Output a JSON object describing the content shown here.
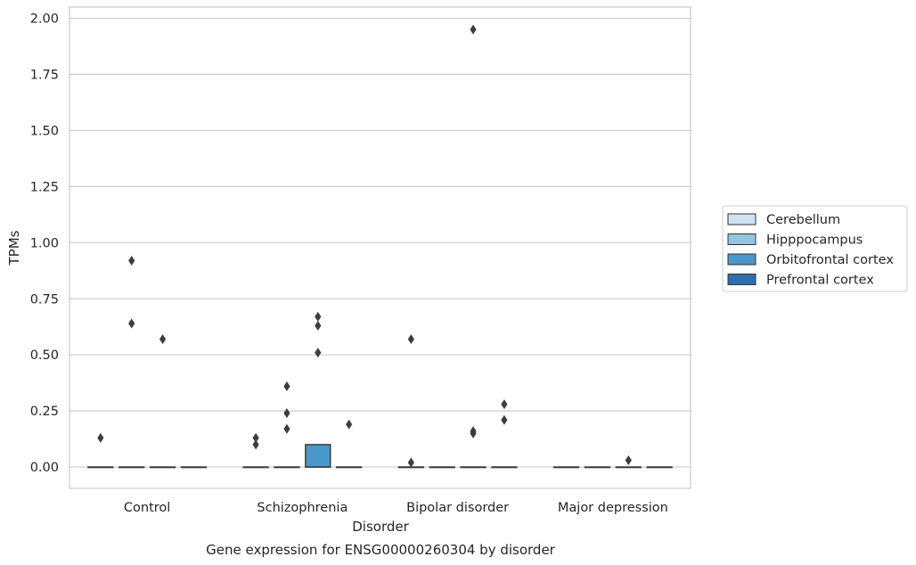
{
  "chart_data": {
    "type": "box",
    "title": "",
    "caption": "Gene expression for ENSG00000260304 by disorder",
    "xlabel": "Disorder",
    "ylabel": "TPMs",
    "ylim": [
      -0.095,
      2.05
    ],
    "yticks": [
      0.0,
      0.25,
      0.5,
      0.75,
      1.0,
      1.25,
      1.5,
      1.75,
      2.0
    ],
    "ytick_labels": [
      "0.00",
      "0.25",
      "0.50",
      "0.75",
      "1.00",
      "1.25",
      "1.50",
      "1.75",
      "2.00"
    ],
    "grid": true,
    "legend_position": "center-right",
    "categories": [
      "Control",
      "Schizophrenia",
      "Bipolar disorder",
      "Major depression"
    ],
    "series": [
      {
        "name": "Cerebellum",
        "color": "#d0e1f2",
        "boxes": [
          {
            "q1": 0,
            "median": 0,
            "q3": 0,
            "whislo": 0,
            "whishi": 0,
            "fliers": [
              0.13
            ]
          },
          {
            "q1": 0,
            "median": 0,
            "q3": 0,
            "whislo": 0,
            "whishi": 0,
            "fliers": [
              0.13,
              0.1
            ]
          },
          {
            "q1": 0,
            "median": 0,
            "q3": 0,
            "whislo": 0,
            "whishi": 0,
            "fliers": [
              0.57,
              0.02
            ]
          },
          {
            "q1": 0,
            "median": 0,
            "q3": 0,
            "whislo": 0,
            "whishi": 0,
            "fliers": []
          }
        ]
      },
      {
        "name": "Hipppocampus",
        "color": "#94c4df",
        "boxes": [
          {
            "q1": 0,
            "median": 0,
            "q3": 0,
            "whislo": 0,
            "whishi": 0,
            "fliers": [
              0.92,
              0.64
            ]
          },
          {
            "q1": 0,
            "median": 0,
            "q3": 0,
            "whislo": 0,
            "whishi": 0,
            "fliers": [
              0.36,
              0.24,
              0.17
            ]
          },
          {
            "q1": 0,
            "median": 0,
            "q3": 0,
            "whislo": 0,
            "whishi": 0,
            "fliers": []
          },
          {
            "q1": 0,
            "median": 0,
            "q3": 0,
            "whislo": 0,
            "whishi": 0,
            "fliers": []
          }
        ]
      },
      {
        "name": "Orbitofrontal cortex",
        "color": "#4a98c9",
        "boxes": [
          {
            "q1": 0,
            "median": 0,
            "q3": 0,
            "whislo": 0,
            "whishi": 0,
            "fliers": [
              0.57
            ]
          },
          {
            "q1": 0,
            "median": 0,
            "q3": 0.1,
            "whislo": 0,
            "whishi": 0.1,
            "fliers": [
              0.67,
              0.63,
              0.51
            ]
          },
          {
            "q1": 0,
            "median": 0,
            "q3": 0,
            "whislo": 0,
            "whishi": 0,
            "fliers": [
              1.95,
              0.16,
              0.15
            ]
          },
          {
            "q1": 0,
            "median": 0,
            "q3": 0,
            "whislo": 0,
            "whishi": 0,
            "fliers": [
              0.03
            ]
          }
        ]
      },
      {
        "name": "Prefrontal cortex",
        "color": "#2e6fae",
        "boxes": [
          {
            "q1": 0,
            "median": 0,
            "q3": 0,
            "whislo": 0,
            "whishi": 0,
            "fliers": []
          },
          {
            "q1": 0,
            "median": 0,
            "q3": 0,
            "whislo": 0,
            "whishi": 0,
            "fliers": [
              0.19
            ]
          },
          {
            "q1": 0,
            "median": 0,
            "q3": 0,
            "whislo": 0,
            "whishi": 0,
            "fliers": [
              0.28,
              0.21
            ]
          },
          {
            "q1": 0,
            "median": 0,
            "q3": 0,
            "whislo": 0,
            "whishi": 0,
            "fliers": []
          }
        ]
      }
    ]
  }
}
